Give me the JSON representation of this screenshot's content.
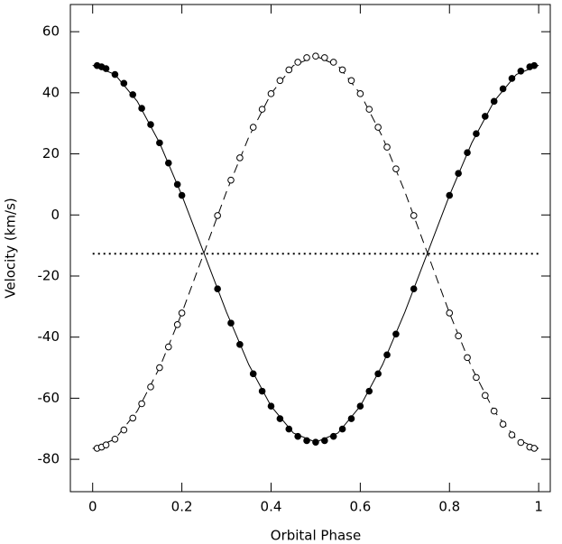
{
  "chart_data": {
    "type": "scatter",
    "x_label": "Orbital Phase",
    "y_label": "Velocity (km/s)",
    "xlim": [
      -0.05,
      1.026
    ],
    "ylim": [
      -90.6,
      68.9
    ],
    "xticks": [
      0,
      0.2,
      0.4,
      0.6,
      0.8,
      1
    ],
    "yticks": [
      -80,
      -60,
      -40,
      -20,
      0,
      20,
      40,
      60
    ],
    "x": [
      0.01,
      0.02,
      0.03,
      0.05,
      0.07,
      0.09,
      0.11,
      0.13,
      0.15,
      0.17,
      0.19,
      0.2,
      0.28,
      0.31,
      0.33,
      0.36,
      0.38,
      0.4,
      0.42,
      0.44,
      0.46,
      0.48,
      0.5,
      0.52,
      0.54,
      0.56,
      0.58,
      0.6,
      0.62,
      0.64,
      0.66,
      0.68,
      0.72,
      0.8,
      0.82,
      0.84,
      0.86,
      0.88,
      0.9,
      0.92,
      0.94,
      0.96,
      0.98,
      0.99
    ],
    "series": [
      {
        "marker": "filled",
        "color": "#000000",
        "values": [
          48.9,
          48.5,
          47.9,
          46.0,
          43.1,
          39.4,
          34.9,
          29.6,
          23.6,
          17.0,
          10.0,
          6.4,
          -24.2,
          -35.4,
          -42.4,
          -52.0,
          -57.7,
          -62.6,
          -66.7,
          -70.1,
          -72.5,
          -73.9,
          -74.4,
          -73.9,
          -72.5,
          -70.1,
          -66.7,
          -62.6,
          -57.7,
          -52.0,
          -45.8,
          -39.0,
          -24.2,
          6.4,
          13.6,
          20.4,
          26.6,
          32.3,
          37.2,
          41.3,
          44.7,
          47.1,
          48.5,
          48.9
        ]
      },
      {
        "marker": "open",
        "color": "#000000",
        "values": [
          -76.4,
          -76.0,
          -75.3,
          -73.4,
          -70.4,
          -66.5,
          -61.8,
          -56.3,
          -50.0,
          -43.2,
          -35.9,
          -32.1,
          -0.2,
          11.4,
          18.7,
          28.7,
          34.6,
          39.7,
          44.0,
          47.5,
          50.0,
          51.5,
          52.0,
          51.5,
          50.0,
          47.5,
          44.0,
          39.7,
          34.6,
          28.7,
          22.2,
          15.1,
          -0.2,
          -32.1,
          -39.6,
          -46.7,
          -53.2,
          -59.1,
          -64.2,
          -68.5,
          -72.0,
          -74.5,
          -76.0,
          -76.4
        ]
      }
    ],
    "model_x": [
      0,
      0.05,
      0.1,
      0.15,
      0.2,
      0.25,
      0.3,
      0.35,
      0.4,
      0.45,
      0.5,
      0.55,
      0.6,
      0.65,
      0.7,
      0.75,
      0.8,
      0.85,
      0.9,
      0.95,
      1
    ],
    "model_curves": [
      {
        "style": "solid",
        "values": [
          49.0,
          46.0,
          37.2,
          23.6,
          6.4,
          -12.7,
          -31.8,
          -49.0,
          -62.6,
          -71.4,
          -74.4,
          -71.4,
          -62.6,
          -49.0,
          -31.8,
          -12.7,
          6.4,
          23.6,
          37.2,
          46.0,
          49.0
        ]
      },
      {
        "style": "dashed",
        "values": [
          -76.5,
          -73.4,
          -64.2,
          -50.0,
          -32.1,
          -12.25,
          7.6,
          25.5,
          39.7,
          48.9,
          52.0,
          48.9,
          39.7,
          25.5,
          7.6,
          -12.25,
          -32.1,
          -50.0,
          -64.2,
          -73.4,
          -76.5
        ]
      }
    ],
    "reference_line": -12.7
  }
}
